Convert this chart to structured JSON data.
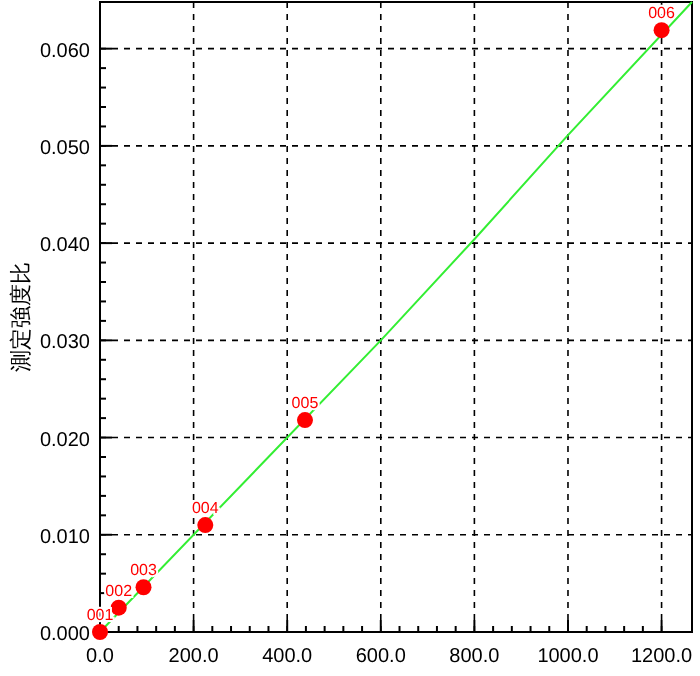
{
  "chart_data": {
    "type": "scatter",
    "ylabel": "測定強度比",
    "xlim": [
      0,
      1265
    ],
    "ylim": [
      0,
      0.0648
    ],
    "xticks": [
      {
        "value": 0,
        "label": "0.0"
      },
      {
        "value": 200,
        "label": "200.0"
      },
      {
        "value": 400,
        "label": "400.0"
      },
      {
        "value": 600,
        "label": "600.0"
      },
      {
        "value": 800,
        "label": "800.0"
      },
      {
        "value": 1000,
        "label": "1000.0"
      },
      {
        "value": 1200,
        "label": "1200.0"
      }
    ],
    "yticks": [
      {
        "value": 0,
        "label": "0.000"
      },
      {
        "value": 0.01,
        "label": "0.010"
      },
      {
        "value": 0.02,
        "label": "0.020"
      },
      {
        "value": 0.03,
        "label": "0.030"
      },
      {
        "value": 0.04,
        "label": "0.040"
      },
      {
        "value": 0.05,
        "label": "0.050"
      },
      {
        "value": 0.06,
        "label": "0.060"
      }
    ],
    "grid": true,
    "annotations": [
      {
        "text": "001",
        "x": 0,
        "y": 0.0
      },
      {
        "text": "002",
        "x": 40,
        "y": 0.0025
      },
      {
        "text": "003",
        "x": 93,
        "y": 0.0046
      },
      {
        "text": "004",
        "x": 225,
        "y": 0.011
      },
      {
        "text": "005",
        "x": 438,
        "y": 0.0218
      },
      {
        "text": "006",
        "x": 1200,
        "y": 0.0619
      }
    ],
    "series": [
      {
        "type": "line",
        "color": "#33ee33",
        "x": [
          0,
          600,
          800,
          1000,
          1265
        ],
        "values": [
          0.0,
          0.03,
          0.0404,
          0.0511,
          0.0648
        ]
      },
      {
        "color": "#ff0000",
        "marker": "circle",
        "x": [
          0,
          40,
          93,
          225,
          438,
          1200
        ],
        "values": [
          0.0,
          0.0025,
          0.0046,
          0.011,
          0.0218,
          0.0619
        ]
      }
    ]
  }
}
